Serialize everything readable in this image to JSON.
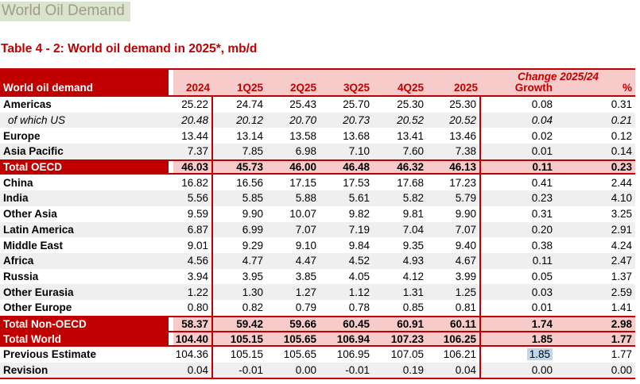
{
  "page": {
    "title": "World Oil Demand"
  },
  "table": {
    "caption": "Table 4 - 2: World oil demand in 2025*, mb/d",
    "unit": "mb/d",
    "header": {
      "label": "World oil demand",
      "change_group": "Change 2025/24",
      "columns": [
        "2024",
        "1Q25",
        "2Q25",
        "3Q25",
        "4Q25",
        "2025",
        "Growth",
        "%"
      ]
    },
    "rows": [
      {
        "label": "Americas",
        "variant": "normal",
        "shaded": false,
        "values": [
          "25.22",
          "24.74",
          "25.43",
          "25.70",
          "25.30",
          "25.30",
          "0.08",
          "0.31"
        ]
      },
      {
        "label": "of which US",
        "variant": "sub",
        "shaded": true,
        "values": [
          "20.48",
          "20.12",
          "20.70",
          "20.73",
          "20.52",
          "20.52",
          "0.04",
          "0.21"
        ]
      },
      {
        "label": "Europe",
        "variant": "normal",
        "shaded": false,
        "values": [
          "13.44",
          "13.14",
          "13.58",
          "13.68",
          "13.41",
          "13.46",
          "0.02",
          "0.12"
        ]
      },
      {
        "label": "Asia Pacific",
        "variant": "normal",
        "shaded": true,
        "values": [
          "7.37",
          "7.85",
          "6.98",
          "7.10",
          "7.60",
          "7.38",
          "0.01",
          "0.14"
        ]
      },
      {
        "label": "Total OECD",
        "variant": "total",
        "shaded": false,
        "values": [
          "46.03",
          "45.73",
          "46.00",
          "46.48",
          "46.32",
          "46.13",
          "0.11",
          "0.23"
        ]
      },
      {
        "label": "China",
        "variant": "normal",
        "shaded": false,
        "values": [
          "16.82",
          "16.56",
          "17.15",
          "17.53",
          "17.68",
          "17.23",
          "0.41",
          "2.44"
        ]
      },
      {
        "label": "India",
        "variant": "normal",
        "shaded": true,
        "values": [
          "5.56",
          "5.85",
          "5.88",
          "5.61",
          "5.82",
          "5.79",
          "0.23",
          "4.10"
        ]
      },
      {
        "label": "Other Asia",
        "variant": "normal",
        "shaded": false,
        "values": [
          "9.59",
          "9.90",
          "10.07",
          "9.82",
          "9.81",
          "9.90",
          "0.31",
          "3.25"
        ]
      },
      {
        "label": "Latin America",
        "variant": "normal",
        "shaded": true,
        "values": [
          "6.87",
          "6.99",
          "7.07",
          "7.19",
          "7.04",
          "7.07",
          "0.20",
          "2.91"
        ]
      },
      {
        "label": "Middle East",
        "variant": "normal",
        "shaded": false,
        "values": [
          "9.01",
          "9.29",
          "9.10",
          "9.84",
          "9.35",
          "9.40",
          "0.38",
          "4.24"
        ]
      },
      {
        "label": "Africa",
        "variant": "normal",
        "shaded": true,
        "values": [
          "4.56",
          "4.77",
          "4.47",
          "4.52",
          "4.93",
          "4.67",
          "0.11",
          "2.47"
        ]
      },
      {
        "label": "Russia",
        "variant": "normal",
        "shaded": false,
        "values": [
          "3.94",
          "3.95",
          "3.85",
          "4.05",
          "4.12",
          "3.99",
          "0.05",
          "1.37"
        ]
      },
      {
        "label": "Other Eurasia",
        "variant": "normal",
        "shaded": true,
        "values": [
          "1.22",
          "1.30",
          "1.27",
          "1.12",
          "1.31",
          "1.25",
          "0.03",
          "2.59"
        ]
      },
      {
        "label": "Other Europe",
        "variant": "normal",
        "shaded": false,
        "values": [
          "0.80",
          "0.82",
          "0.79",
          "0.78",
          "0.85",
          "0.81",
          "0.01",
          "1.41"
        ]
      },
      {
        "label": "Total Non-OECD",
        "variant": "total",
        "shaded": false,
        "values": [
          "58.37",
          "59.42",
          "59.66",
          "60.45",
          "60.91",
          "60.11",
          "1.74",
          "2.98"
        ]
      },
      {
        "label": "Total World",
        "variant": "total",
        "shaded": false,
        "values": [
          "104.40",
          "105.15",
          "105.65",
          "106.94",
          "107.23",
          "106.25",
          "1.85",
          "1.77"
        ]
      },
      {
        "label": "Previous Estimate",
        "variant": "normal",
        "shaded": false,
        "values": [
          "104.36",
          "105.15",
          "105.65",
          "106.95",
          "107.05",
          "106.21",
          "1.85",
          "1.77"
        ],
        "highlight_col": 6
      },
      {
        "label": "Revision",
        "variant": "normal",
        "shaded": true,
        "values": [
          "0.04",
          "-0.01",
          "0.00",
          "-0.01",
          "0.19",
          "0.04",
          "0.00",
          "0.00"
        ]
      }
    ],
    "colors": {
      "accent_dark_red": "#c00000",
      "header_pink": "#f8cbcb",
      "row_alt_gray": "#efefef",
      "highlight_blue": "#bdd7ee",
      "title_highlight_green": "#d9e3ce",
      "title_text": "#a39b85"
    }
  }
}
